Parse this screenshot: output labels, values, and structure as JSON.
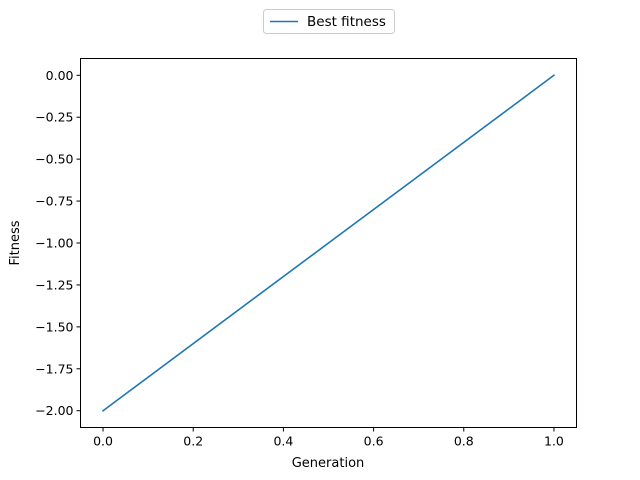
{
  "chart_data": {
    "type": "line",
    "title": "",
    "xlabel": "Generation",
    "ylabel": "Fitness",
    "xlim": [
      -0.05,
      1.05
    ],
    "ylim": [
      -2.1,
      0.1
    ],
    "x_ticks": [
      0.0,
      0.2,
      0.4,
      0.6,
      0.8,
      1.0
    ],
    "x_tick_labels": [
      "0.0",
      "0.2",
      "0.4",
      "0.6",
      "0.8",
      "1.0"
    ],
    "y_ticks": [
      0.0,
      -0.25,
      -0.5,
      -0.75,
      -1.0,
      -1.25,
      -1.5,
      -1.75,
      -2.0
    ],
    "y_tick_labels": [
      "0.00",
      "−0.25",
      "−0.50",
      "−0.75",
      "−1.00",
      "−1.25",
      "−1.50",
      "−1.75",
      "−2.00"
    ],
    "grid": false,
    "legend_position": "top-center",
    "series": [
      {
        "name": "Best fitness",
        "color": "#1f77b4",
        "x": [
          0,
          1
        ],
        "y": [
          -2.0,
          0.0
        ]
      }
    ]
  }
}
